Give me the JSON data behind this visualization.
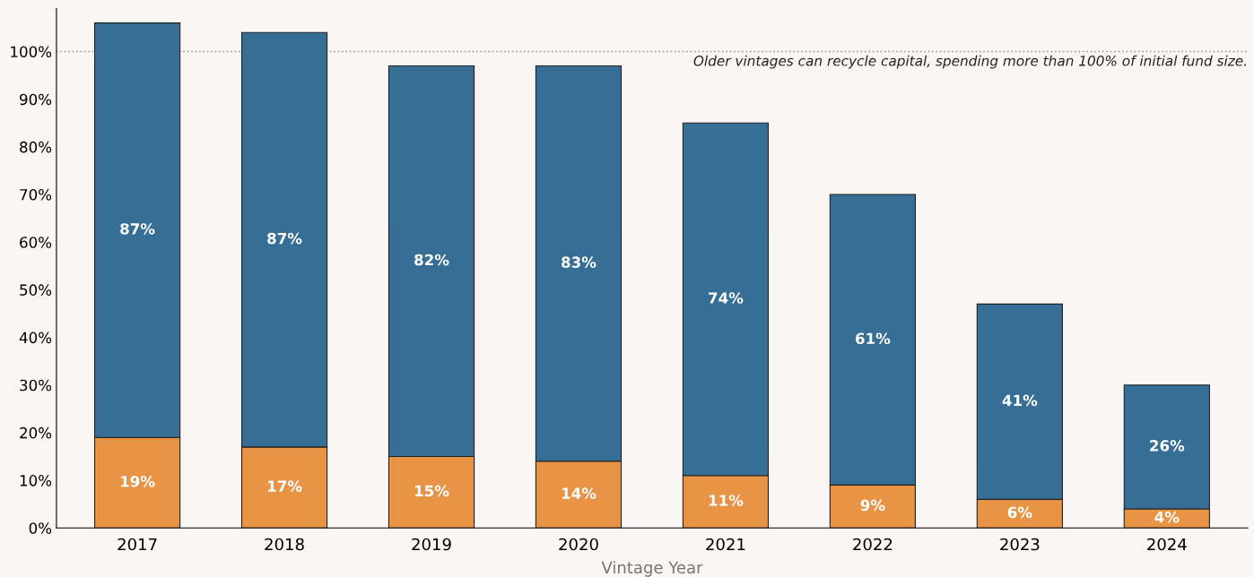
{
  "chart_data": {
    "type": "bar",
    "stacked": true,
    "xlabel": "Vintage Year",
    "categories": [
      "2017",
      "2018",
      "2019",
      "2020",
      "2021",
      "2022",
      "2023",
      "2024"
    ],
    "series": [
      {
        "color": "#e89447",
        "values": [
          19,
          17,
          15,
          14,
          11,
          9,
          6,
          4
        ],
        "value_labels": [
          "19%",
          "17%",
          "15%",
          "14%",
          "11%",
          "9%",
          "6%",
          "4%"
        ]
      },
      {
        "color": "#376e95",
        "values": [
          87,
          87,
          82,
          83,
          74,
          61,
          41,
          26
        ],
        "value_labels": [
          "87%",
          "87%",
          "82%",
          "83%",
          "74%",
          "61%",
          "41%",
          "26%"
        ]
      }
    ],
    "ylim": [
      0,
      109
    ],
    "yticks": [
      {
        "value": 0,
        "label": "0%"
      },
      {
        "value": 10,
        "label": "10%"
      },
      {
        "value": 20,
        "label": "20%"
      },
      {
        "value": 30,
        "label": "30%"
      },
      {
        "value": 40,
        "label": "40%"
      },
      {
        "value": 50,
        "label": "50%"
      },
      {
        "value": 60,
        "label": "60%"
      },
      {
        "value": 70,
        "label": "70%"
      },
      {
        "value": 80,
        "label": "80%"
      },
      {
        "value": 90,
        "label": "90%"
      },
      {
        "value": 100,
        "label": "100%"
      }
    ],
    "ref_lines": [
      {
        "axis": "y",
        "value": 100,
        "label": "Older vintages can recycle capital, spending more than 100% of initial fund size.",
        "color": "#999999",
        "line_style": "dotted"
      }
    ],
    "grid": false,
    "legend": false
  }
}
